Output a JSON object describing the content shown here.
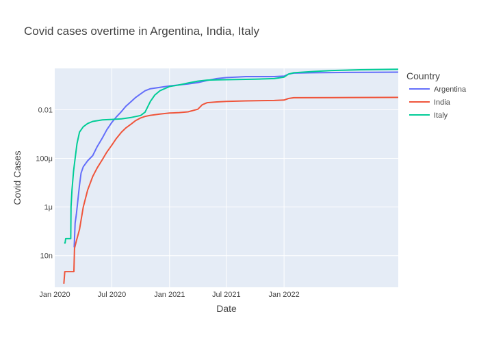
{
  "chart_data": {
    "type": "line",
    "title": "Covid cases overtime in Argentina, India, Italy",
    "xlabel": "Date",
    "ylabel": "Covid Cases",
    "yscale": "log",
    "grid": true,
    "legend": {
      "title": "Country",
      "placement": "right"
    },
    "plot_background": "#E5ECF6",
    "x_range": [
      "2020-01-01",
      "2022-12-31"
    ],
    "y_range": [
      5e-10,
      0.5
    ],
    "x_ticks": [
      {
        "date": "2020-01-01",
        "label": "Jan 2020"
      },
      {
        "date": "2020-07-01",
        "label": "Jul 2020"
      },
      {
        "date": "2021-01-01",
        "label": "Jan 2021"
      },
      {
        "date": "2021-07-01",
        "label": "Jul 2021"
      },
      {
        "date": "2022-01-01",
        "label": "Jan 2022"
      }
    ],
    "y_ticks": [
      {
        "value": 1e-08,
        "label": "10n"
      },
      {
        "value": 1e-06,
        "label": "1μ"
      },
      {
        "value": 0.0001,
        "label": "100μ"
      },
      {
        "value": 0.01,
        "label": "0.01"
      }
    ],
    "series": [
      {
        "name": "Argentina",
        "color": "#636EFA",
        "points": [
          [
            "2020-03-03",
            2.2e-08
          ],
          [
            "2020-03-06",
            2.2e-07
          ],
          [
            "2020-03-10",
            5e-07
          ],
          [
            "2020-03-15",
            2e-06
          ],
          [
            "2020-03-20",
            8e-06
          ],
          [
            "2020-03-25",
            2.5e-05
          ],
          [
            "2020-04-01",
            4.5e-05
          ],
          [
            "2020-04-15",
            8e-05
          ],
          [
            "2020-05-01",
            0.00013
          ],
          [
            "2020-05-15",
            0.0003
          ],
          [
            "2020-06-01",
            0.0007
          ],
          [
            "2020-06-15",
            0.0015
          ],
          [
            "2020-07-01",
            0.003
          ],
          [
            "2020-07-15",
            0.005
          ],
          [
            "2020-08-01",
            0.0085
          ],
          [
            "2020-08-15",
            0.014
          ],
          [
            "2020-09-01",
            0.022
          ],
          [
            "2020-09-15",
            0.032
          ],
          [
            "2020-10-01",
            0.045
          ],
          [
            "2020-10-15",
            0.06
          ],
          [
            "2020-11-01",
            0.073
          ],
          [
            "2020-12-01",
            0.083
          ],
          [
            "2021-01-01",
            0.095
          ],
          [
            "2021-02-01",
            0.105
          ],
          [
            "2021-03-01",
            0.115
          ],
          [
            "2021-04-01",
            0.13
          ],
          [
            "2021-05-01",
            0.16
          ],
          [
            "2021-06-01",
            0.19
          ],
          [
            "2021-07-01",
            0.21
          ],
          [
            "2021-08-01",
            0.22
          ],
          [
            "2021-09-01",
            0.23
          ],
          [
            "2021-10-01",
            0.23
          ],
          [
            "2021-11-01",
            0.23
          ],
          [
            "2021-12-01",
            0.23
          ],
          [
            "2022-01-01",
            0.24
          ],
          [
            "2022-01-15",
            0.29
          ],
          [
            "2022-02-01",
            0.32
          ],
          [
            "2022-04-01",
            0.33
          ],
          [
            "2022-07-01",
            0.34
          ],
          [
            "2022-10-01",
            0.345
          ],
          [
            "2022-12-31",
            0.35
          ]
        ]
      },
      {
        "name": "India",
        "color": "#EF553B",
        "points": [
          [
            "2020-01-30",
            7e-10
          ],
          [
            "2020-02-02",
            2.2e-09
          ],
          [
            "2020-02-15",
            2.2e-09
          ],
          [
            "2020-03-02",
            2.2e-09
          ],
          [
            "2020-03-04",
            2e-08
          ],
          [
            "2020-03-10",
            4e-08
          ],
          [
            "2020-03-20",
            1.2e-07
          ],
          [
            "2020-04-01",
            1e-06
          ],
          [
            "2020-04-15",
            5e-06
          ],
          [
            "2020-05-01",
            1.8e-05
          ],
          [
            "2020-05-15",
            4e-05
          ],
          [
            "2020-06-01",
            9e-05
          ],
          [
            "2020-06-15",
            0.00018
          ],
          [
            "2020-07-01",
            0.00035
          ],
          [
            "2020-07-15",
            0.00065
          ],
          [
            "2020-08-01",
            0.0012
          ],
          [
            "2020-08-15",
            0.0018
          ],
          [
            "2020-09-01",
            0.0026
          ],
          [
            "2020-09-15",
            0.0036
          ],
          [
            "2020-10-01",
            0.0046
          ],
          [
            "2020-10-15",
            0.0053
          ],
          [
            "2020-11-01",
            0.0059
          ],
          [
            "2020-12-01",
            0.0066
          ],
          [
            "2021-01-01",
            0.0073
          ],
          [
            "2021-02-01",
            0.0076
          ],
          [
            "2021-03-01",
            0.0082
          ],
          [
            "2021-04-01",
            0.0105
          ],
          [
            "2021-04-15",
            0.016
          ],
          [
            "2021-05-01",
            0.0195
          ],
          [
            "2021-06-01",
            0.021
          ],
          [
            "2021-07-01",
            0.022
          ],
          [
            "2021-09-01",
            0.023
          ],
          [
            "2021-12-01",
            0.024
          ],
          [
            "2022-01-01",
            0.025
          ],
          [
            "2022-01-15",
            0.029
          ],
          [
            "2022-02-01",
            0.031
          ],
          [
            "2022-06-01",
            0.0315
          ],
          [
            "2022-12-31",
            0.032
          ]
        ]
      },
      {
        "name": "Italy",
        "color": "#00CC96",
        "points": [
          [
            "2020-01-31",
            3.3e-08
          ],
          [
            "2020-02-03",
            3.3e-08
          ],
          [
            "2020-02-05",
            5e-08
          ],
          [
            "2020-02-15",
            5e-08
          ],
          [
            "2020-02-21",
            5e-08
          ],
          [
            "2020-02-22",
            1e-06
          ],
          [
            "2020-02-25",
            5e-06
          ],
          [
            "2020-03-01",
            3e-05
          ],
          [
            "2020-03-06",
            0.0001
          ],
          [
            "2020-03-12",
            0.0004
          ],
          [
            "2020-03-20",
            0.0012
          ],
          [
            "2020-04-01",
            0.002
          ],
          [
            "2020-04-15",
            0.0027
          ],
          [
            "2020-05-01",
            0.0033
          ],
          [
            "2020-06-01",
            0.0038
          ],
          [
            "2020-07-01",
            0.004
          ],
          [
            "2020-08-01",
            0.0042
          ],
          [
            "2020-09-01",
            0.0048
          ],
          [
            "2020-10-01",
            0.0058
          ],
          [
            "2020-10-15",
            0.008
          ],
          [
            "2020-11-01",
            0.022
          ],
          [
            "2020-11-15",
            0.04
          ],
          [
            "2020-12-01",
            0.06
          ],
          [
            "2021-01-01",
            0.09
          ],
          [
            "2021-02-01",
            0.105
          ],
          [
            "2021-03-01",
            0.125
          ],
          [
            "2021-04-01",
            0.15
          ],
          [
            "2021-05-01",
            0.165
          ],
          [
            "2021-06-01",
            0.17
          ],
          [
            "2021-08-01",
            0.175
          ],
          [
            "2021-10-01",
            0.18
          ],
          [
            "2021-12-01",
            0.19
          ],
          [
            "2022-01-01",
            0.22
          ],
          [
            "2022-01-15",
            0.29
          ],
          [
            "2022-02-01",
            0.33
          ],
          [
            "2022-04-01",
            0.37
          ],
          [
            "2022-06-01",
            0.41
          ],
          [
            "2022-09-01",
            0.44
          ],
          [
            "2022-12-31",
            0.46
          ]
        ]
      }
    ]
  }
}
